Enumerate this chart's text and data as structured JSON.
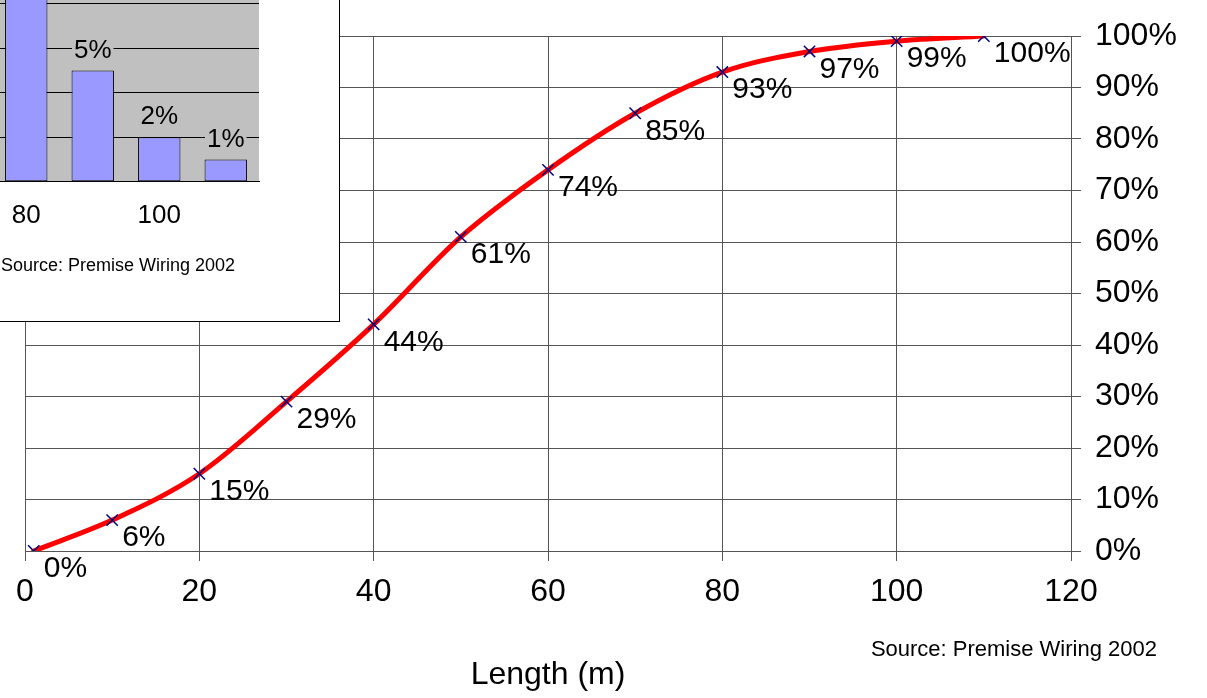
{
  "chart_data": [
    {
      "type": "line",
      "xlabel": "Length (m)",
      "x": [
        1,
        10,
        20,
        30,
        40,
        50,
        60,
        70,
        80,
        90,
        100,
        110
      ],
      "values": [
        0,
        6,
        15,
        29,
        44,
        61,
        74,
        85,
        93,
        97,
        99,
        100
      ],
      "value_labels": [
        "0%",
        "6%",
        "15%",
        "29%",
        "44%",
        "61%",
        "74%",
        "85%",
        "93%",
        "97%",
        "99%",
        "100%"
      ],
      "color": "#ff0000",
      "marker": "cross",
      "xlim": [
        0,
        120
      ],
      "xticks": [
        0,
        20,
        40,
        60,
        80,
        100,
        120
      ],
      "ylim": [
        0,
        100
      ],
      "yticks": [
        {
          "value": 0,
          "label": "0%"
        },
        {
          "value": 10,
          "label": "10%"
        },
        {
          "value": 20,
          "label": "20%"
        },
        {
          "value": 30,
          "label": "30%"
        },
        {
          "value": 40,
          "label": "40%"
        },
        {
          "value": 50,
          "label": "50%"
        },
        {
          "value": 60,
          "label": "60%"
        },
        {
          "value": 70,
          "label": "70%"
        },
        {
          "value": 80,
          "label": "80%"
        },
        {
          "value": 90,
          "label": "90%"
        },
        {
          "value": 100,
          "label": "100%"
        }
      ],
      "grid": true,
      "annotations": [
        "Source: Premise Wiring 2002"
      ]
    },
    {
      "type": "bar",
      "categories": [
        "80",
        null,
        "100",
        null
      ],
      "values": [
        9,
        5,
        2,
        1
      ],
      "value_labels": [
        null,
        "5%",
        "2%",
        "1%"
      ],
      "color": "#9999ff",
      "ylim": [
        0,
        10
      ],
      "grid": "y",
      "tick_labels": "x",
      "annotations": [
        "Source: Premise Wiring 2002"
      ]
    }
  ]
}
